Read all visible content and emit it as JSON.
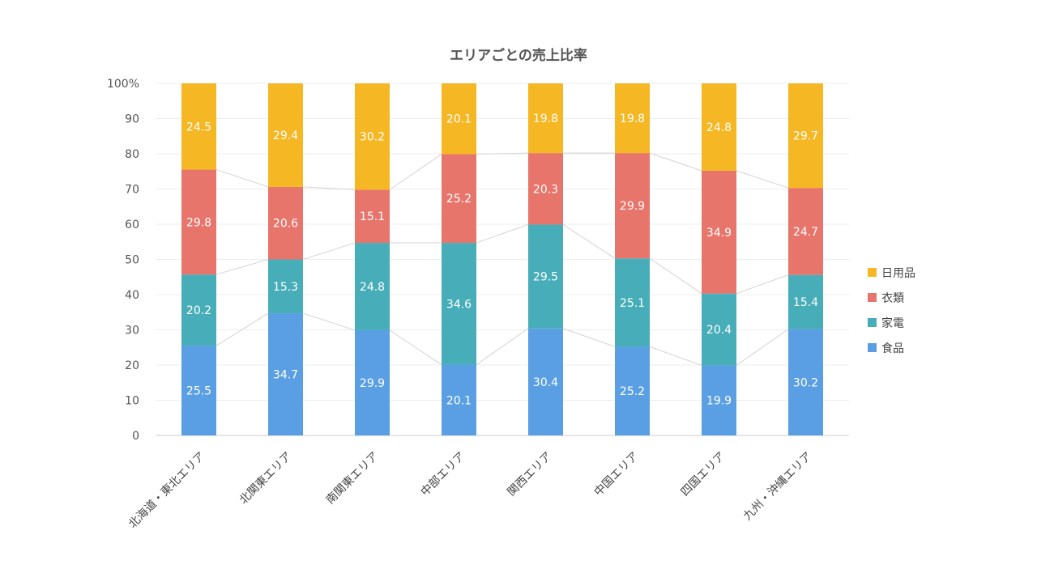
{
  "chart_data": {
    "type": "bar",
    "stacked": true,
    "percent": true,
    "title": "エリアごとの売上比率",
    "categories": [
      "北海道・東北エリア",
      "北関東エリア",
      "南関東エリア",
      "中部エリア",
      "関西エリア",
      "中国エリア",
      "四国エリア",
      "九州・沖縄エリア"
    ],
    "series": [
      {
        "name": "食品",
        "color": "#5a9fe3",
        "values": [
          25.5,
          34.7,
          29.9,
          20.1,
          30.4,
          25.2,
          19.9,
          30.2
        ]
      },
      {
        "name": "家電",
        "color": "#47adb8",
        "values": [
          20.2,
          15.3,
          24.8,
          34.6,
          29.5,
          25.1,
          20.4,
          15.4
        ]
      },
      {
        "name": "衣類",
        "color": "#e8756b",
        "values": [
          29.8,
          20.6,
          15.1,
          25.2,
          20.3,
          29.9,
          34.9,
          24.7
        ]
      },
      {
        "name": "日用品",
        "color": "#f5b723",
        "values": [
          24.5,
          29.4,
          30.2,
          20.1,
          19.8,
          19.8,
          24.8,
          29.7
        ]
      }
    ],
    "ylim": [
      0,
      100
    ],
    "yticks": [
      "0",
      "10",
      "20",
      "30",
      "40",
      "50",
      "60",
      "70",
      "80",
      "90",
      "100%"
    ],
    "grid": true,
    "series_lines": true,
    "legend_position": "right"
  }
}
